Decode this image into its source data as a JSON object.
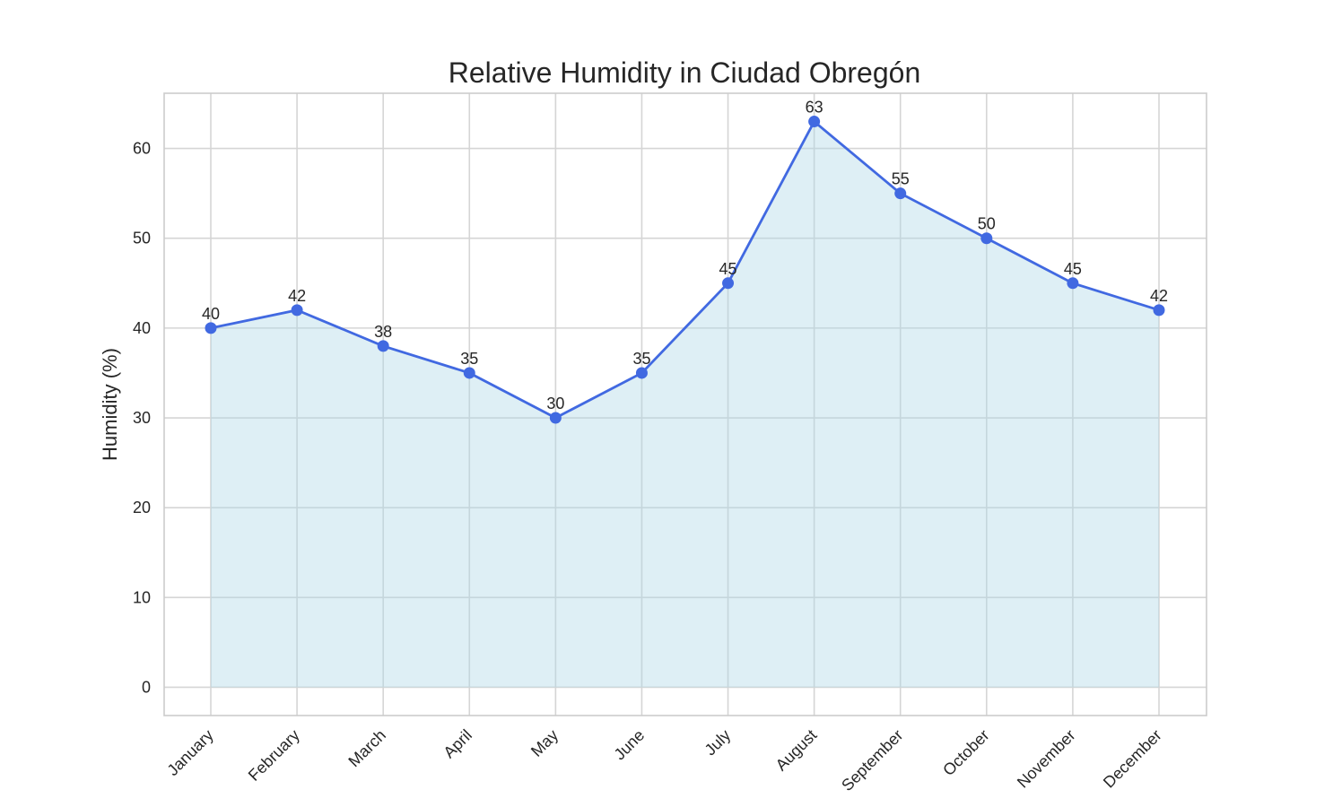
{
  "chart_data": {
    "type": "area",
    "title": "Relative Humidity in Ciudad Obregón",
    "xlabel": "",
    "ylabel": "Humidity (%)",
    "categories": [
      "January",
      "February",
      "March",
      "April",
      "May",
      "June",
      "July",
      "August",
      "September",
      "October",
      "November",
      "December"
    ],
    "series": [
      {
        "values": [
          40,
          42,
          38,
          35,
          30,
          35,
          45,
          63,
          55,
          50,
          45,
          42
        ]
      }
    ],
    "ylim": [
      -3.15,
      66.15
    ],
    "yticks": [
      0,
      10,
      20,
      30,
      40,
      50,
      60
    ],
    "grid": true,
    "data_labels": true,
    "colors": {
      "line": "#4169e1",
      "fill": "#add8e6"
    }
  }
}
